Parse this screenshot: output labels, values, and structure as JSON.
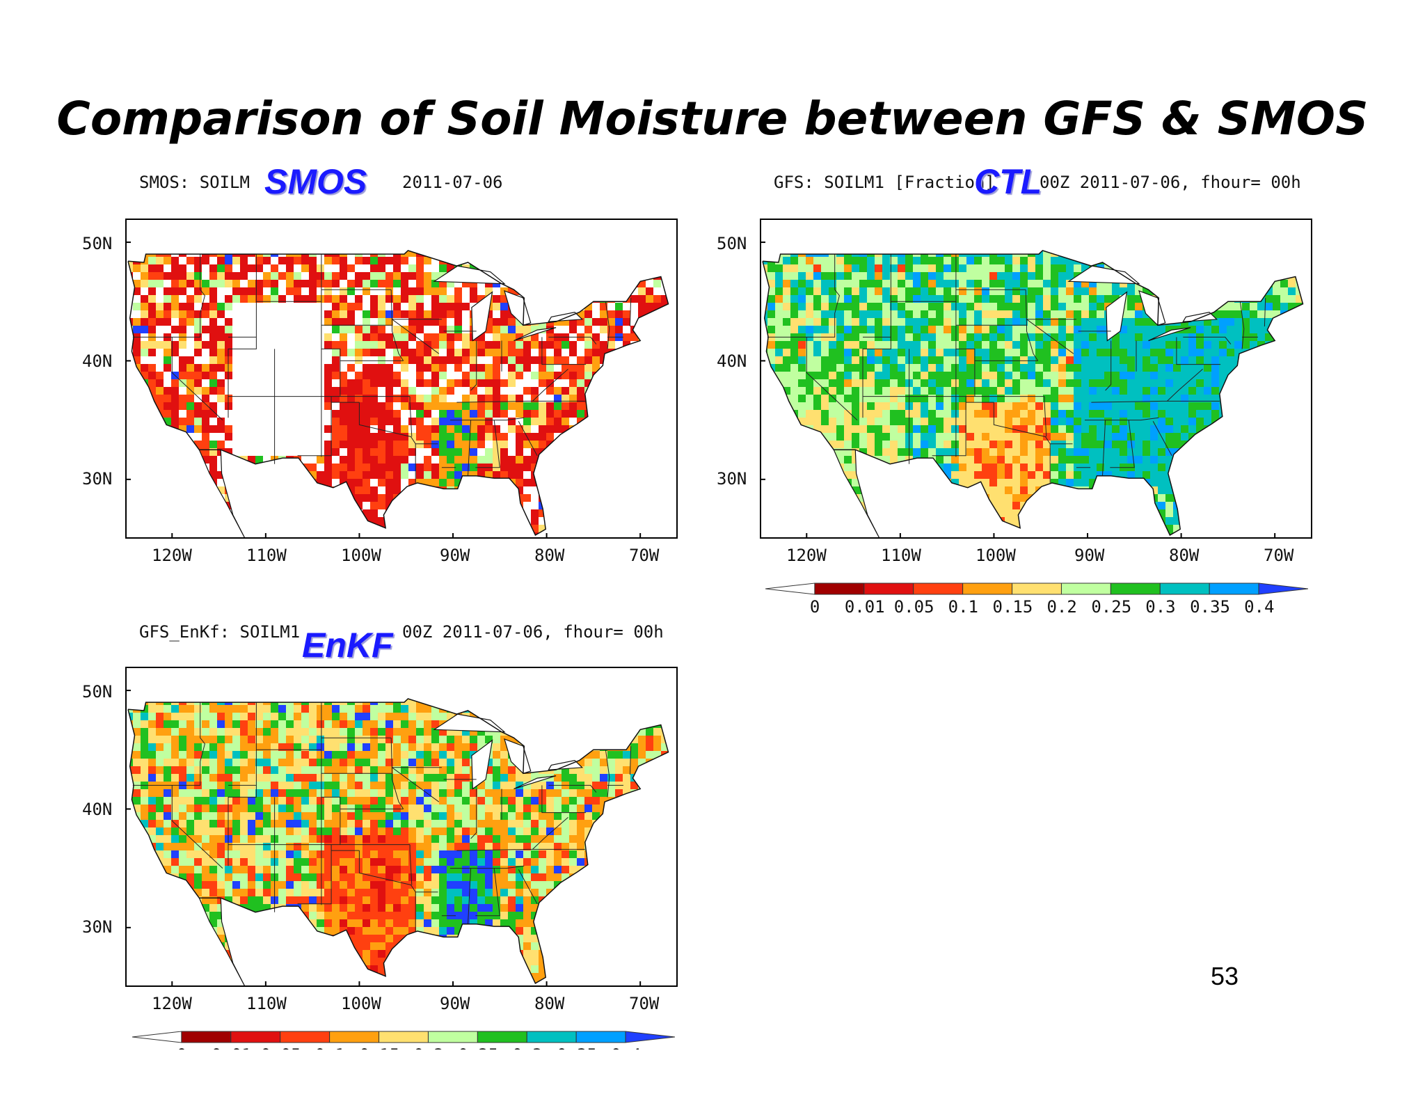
{
  "slide": {
    "title": "Comparison of Soil Moisture between GFS & SMOS",
    "page_number": "53"
  },
  "panels": [
    {
      "id": "smos",
      "header_left": "SMOS: SOILM",
      "tag": "SMOS",
      "header_right": "2011-07-06",
      "lat_labels": [
        "50N",
        "40N",
        "30N"
      ],
      "lon_labels": [
        "120W",
        "110W",
        "100W",
        "90W",
        "80W",
        "70W"
      ],
      "dominant": "dry-red-with-gaps"
    },
    {
      "id": "ctl",
      "header_left": "GFS: SOILM1 [Fraction]",
      "tag": "CTL",
      "header_right": "00Z 2011-07-06, fhour= 00h",
      "lat_labels": [
        "50N",
        "40N",
        "30N"
      ],
      "lon_labels": [
        "120W",
        "110W",
        "100W",
        "90W",
        "80W",
        "70W"
      ],
      "dominant": "wet-green-teal"
    },
    {
      "id": "enkf",
      "header_left": "GFS_EnKf: SOILM1",
      "tag": "EnKF",
      "header_right": "00Z 2011-07-06, fhour= 00h",
      "lat_labels": [
        "50N",
        "40N",
        "30N"
      ],
      "lon_labels": [
        "120W",
        "110W",
        "100W",
        "90W",
        "80W",
        "70W"
      ],
      "dominant": "mixed-orange-green"
    }
  ],
  "colorbar": {
    "labels": [
      "0",
      "0.01",
      "0.05",
      "0.1",
      "0.15",
      "0.2",
      "0.25",
      "0.3",
      "0.35",
      "0.4"
    ],
    "colors": [
      "#ffffff",
      "#a00000",
      "#e01010",
      "#ff4010",
      "#ffa010",
      "#ffe070",
      "#c0ffa0",
      "#20c020",
      "#00c0c0",
      "#00a0ff",
      "#2040ff"
    ]
  }
}
